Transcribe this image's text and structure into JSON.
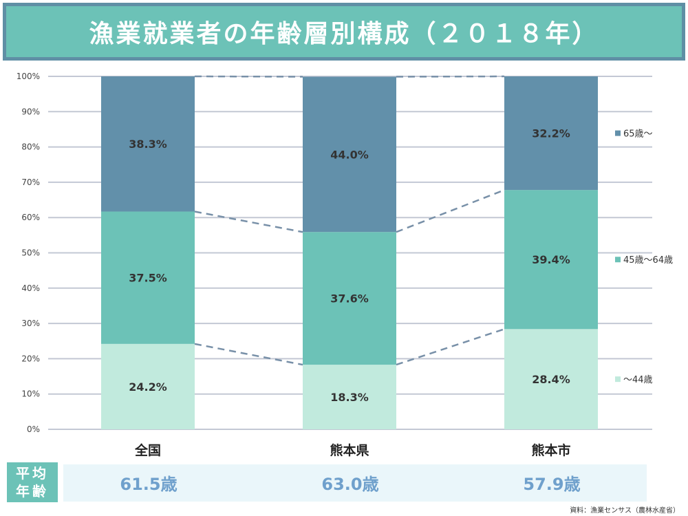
{
  "title": "漁業就業者の年齢層別構成（２０１８年）",
  "chart_data": {
    "type": "bar",
    "stacked": true,
    "percent": true,
    "categories": [
      "全国",
      "熊本県",
      "熊本市"
    ],
    "series": [
      {
        "name": "〜44歳",
        "values": [
          24.2,
          18.3,
          28.4
        ],
        "labels": [
          "24.2%",
          "18.3%",
          "28.4%"
        ],
        "color": "#c1eadd"
      },
      {
        "name": "45歳〜64歳",
        "values": [
          37.5,
          37.6,
          39.4
        ],
        "labels": [
          "37.5%",
          "37.6%",
          "39.4%"
        ],
        "color": "#6cc2b7"
      },
      {
        "name": "65歳〜",
        "values": [
          38.3,
          44.0,
          32.2
        ],
        "labels": [
          "38.3%",
          "44.0%",
          "32.2%"
        ],
        "color": "#6290aa"
      }
    ],
    "yticks": [
      "0%",
      "10%",
      "20%",
      "30%",
      "40%",
      "50%",
      "60%",
      "70%",
      "80%",
      "90%",
      "100%"
    ],
    "ylim": [
      0,
      100
    ],
    "legend_position": "right",
    "grid": true
  },
  "average_age": {
    "label_line1": "平均",
    "label_line2": "年齢",
    "values": [
      "61.5歳",
      "63.0歳",
      "57.9歳"
    ]
  },
  "source": "資料：漁業センサス（農林水産省）",
  "colors": {
    "accent": "#6cc2b7",
    "border": "#5f8fa5",
    "avg_text": "#6fa0cc",
    "connector": "#7890a8"
  }
}
